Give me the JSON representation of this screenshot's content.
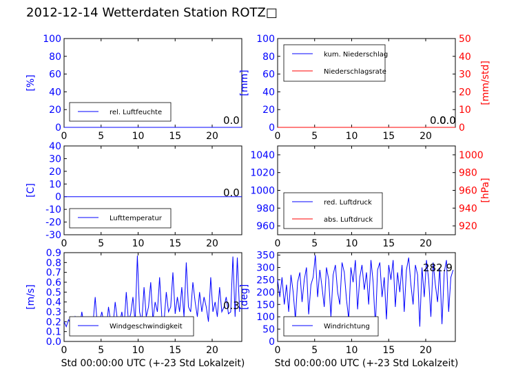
{
  "title": "2012-12-14 Wetterdaten Station ROTZ□",
  "colors": {
    "blue": "#0000ff",
    "red": "#ff0000"
  },
  "chart_data": [
    {
      "id": "humidity",
      "type": "line",
      "ylabel": "[%]",
      "xlim": [
        0,
        24
      ],
      "ylim": [
        0,
        100
      ],
      "xticks": [
        0,
        5,
        10,
        15,
        20
      ],
      "yticks": [
        0,
        20,
        40,
        60,
        80,
        100
      ],
      "series": [
        {
          "name": "rel. Luftfeuchte",
          "x": [
            0,
            24
          ],
          "y": [
            0,
            0
          ]
        }
      ],
      "annotation": "0.0"
    },
    {
      "id": "precipitation",
      "type": "line",
      "ylabel": "[mm]",
      "ylabel_right": "[mm/std]",
      "xlim": [
        0,
        24
      ],
      "ylim": [
        0,
        100
      ],
      "ylim_right": [
        0,
        50
      ],
      "xticks": [
        0,
        5,
        10,
        15,
        20
      ],
      "yticks": [
        0,
        20,
        40,
        60,
        80,
        100
      ],
      "yticks_right": [
        0,
        10,
        20,
        30,
        40,
        50
      ],
      "series": [
        {
          "name": "kum. Niederschlag",
          "x": [
            0,
            24
          ],
          "y": [
            0,
            0
          ]
        },
        {
          "name": "Niederschlagsrate",
          "x": [
            0,
            24
          ],
          "y": [
            0,
            0
          ]
        }
      ],
      "annotation": "0.0",
      "annotation2": "0.0"
    },
    {
      "id": "temperature",
      "type": "line",
      "ylabel": "[C]",
      "xlim": [
        0,
        24
      ],
      "ylim": [
        -30,
        40
      ],
      "xticks": [
        0,
        5,
        10,
        15,
        20
      ],
      "yticks": [
        -30,
        -20,
        -10,
        0,
        10,
        20,
        30,
        40
      ],
      "series": [
        {
          "name": "Lufttemperatur",
          "x": [
            0,
            24
          ],
          "y": [
            0,
            0
          ]
        }
      ],
      "annotation": "0.0"
    },
    {
      "id": "pressure",
      "type": "line",
      "ylabel_right": "[hPa]",
      "xlim": [
        0,
        24
      ],
      "ylim": [
        950,
        1050
      ],
      "ylim_right": [
        910,
        1010
      ],
      "xticks": [
        0,
        5,
        10,
        15,
        20
      ],
      "yticks": [
        960,
        980,
        1000,
        1020,
        1040
      ],
      "yticks_right": [
        920,
        940,
        960,
        980,
        1000
      ],
      "series": [
        {
          "name": "red. Luftdruck",
          "x": [],
          "y": []
        },
        {
          "name": "abs. Luftdruck",
          "x": [],
          "y": []
        }
      ]
    },
    {
      "id": "windspeed",
      "type": "line",
      "ylabel": "[m/s]",
      "xlabel": "Std 00:00:00 UTC (+-23 Std Lokalzeit)",
      "xlim": [
        0,
        24
      ],
      "ylim": [
        0,
        0.9
      ],
      "xticks": [
        0,
        5,
        10,
        15,
        20
      ],
      "yticks": [
        0.0,
        0.1,
        0.2,
        0.3,
        0.4,
        0.5,
        0.6,
        0.7,
        0.8,
        0.9
      ],
      "series": [
        {
          "name": "Windgeschwindigkeit",
          "x": [
            0.0,
            0.3,
            0.6,
            0.9,
            1.2,
            1.5,
            1.8,
            2.1,
            2.4,
            2.7,
            3.0,
            3.3,
            3.6,
            3.9,
            4.2,
            4.5,
            4.8,
            5.1,
            5.4,
            5.7,
            6.0,
            6.3,
            6.6,
            6.9,
            7.2,
            7.5,
            7.8,
            8.1,
            8.4,
            8.7,
            9.0,
            9.3,
            9.6,
            9.9,
            10.2,
            10.5,
            10.8,
            11.1,
            11.4,
            11.7,
            12.0,
            12.3,
            12.6,
            12.9,
            13.2,
            13.5,
            13.8,
            14.1,
            14.4,
            14.7,
            15.0,
            15.3,
            15.6,
            15.9,
            16.2,
            16.5,
            16.8,
            17.1,
            17.4,
            17.7,
            18.0,
            18.3,
            18.6,
            18.9,
            19.2,
            19.5,
            19.8,
            20.1,
            20.4,
            20.7,
            21.0,
            21.3,
            21.6,
            21.9,
            22.2,
            22.5,
            22.8,
            23.1,
            23.4,
            23.7
          ],
          "y": [
            0.2,
            0.15,
            0.22,
            0.18,
            0.12,
            0.25,
            0.19,
            0.14,
            0.3,
            0.16,
            0.2,
            0.13,
            0.24,
            0.17,
            0.45,
            0.15,
            0.2,
            0.3,
            0.18,
            0.12,
            0.35,
            0.2,
            0.15,
            0.4,
            0.22,
            0.18,
            0.3,
            0.15,
            0.5,
            0.2,
            0.28,
            0.45,
            0.18,
            0.87,
            0.3,
            0.2,
            0.55,
            0.25,
            0.35,
            0.6,
            0.22,
            0.4,
            0.3,
            0.65,
            0.25,
            0.2,
            0.5,
            0.3,
            0.35,
            0.7,
            0.28,
            0.45,
            0.3,
            0.55,
            0.25,
            0.8,
            0.35,
            0.3,
            0.6,
            0.4,
            0.25,
            0.5,
            0.3,
            0.45,
            0.35,
            0.2,
            0.65,
            0.3,
            0.4,
            0.25,
            0.55,
            0.3,
            0.35,
            0.45,
            0.28,
            0.3,
            0.86,
            0.25,
            0.85,
            0.3
          ]
        }
      ],
      "annotation": "0.3"
    },
    {
      "id": "winddirection",
      "type": "line",
      "ylabel": "[deg]",
      "xlabel": "Std 00:00:00 UTC (+-23 Std Lokalzeit)",
      "xlim": [
        0,
        24
      ],
      "ylim": [
        0,
        360
      ],
      "xticks": [
        0,
        5,
        10,
        15,
        20
      ],
      "yticks": [
        0,
        50,
        100,
        150,
        200,
        250,
        300,
        350
      ],
      "series": [
        {
          "name": "Windrichtung",
          "x": [
            0.0,
            0.3,
            0.6,
            0.9,
            1.2,
            1.5,
            1.8,
            2.1,
            2.4,
            2.7,
            3.0,
            3.3,
            3.6,
            3.9,
            4.2,
            4.5,
            4.8,
            5.1,
            5.4,
            5.7,
            6.0,
            6.3,
            6.6,
            6.9,
            7.2,
            7.5,
            7.8,
            8.1,
            8.4,
            8.7,
            9.0,
            9.3,
            9.6,
            9.9,
            10.2,
            10.5,
            10.8,
            11.1,
            11.4,
            11.7,
            12.0,
            12.3,
            12.6,
            12.9,
            13.2,
            13.5,
            13.8,
            14.1,
            14.4,
            14.7,
            15.0,
            15.3,
            15.6,
            15.9,
            16.2,
            16.5,
            16.8,
            17.1,
            17.4,
            17.7,
            18.0,
            18.3,
            18.6,
            18.9,
            19.2,
            19.5,
            19.8,
            20.1,
            20.4,
            20.7,
            21.0,
            21.3,
            21.6,
            21.9,
            22.2,
            22.5,
            22.8,
            23.1,
            23.4,
            23.7
          ],
          "y": [
            250,
            180,
            260,
            150,
            230,
            120,
            270,
            200,
            90,
            240,
            280,
            160,
            250,
            300,
            110,
            230,
            260,
            350,
            180,
            290,
            220,
            140,
            300,
            250,
            100,
            270,
            310,
            200,
            150,
            320,
            280,
            170,
            90,
            300,
            240,
            330,
            130,
            260,
            310,
            210,
            280,
            150,
            330,
            240,
            60,
            290,
            320,
            180,
            260,
            90,
            310,
            250,
            330,
            140,
            280,
            200,
            310,
            120,
            290,
            340,
            230,
            150,
            310,
            270,
            60,
            300,
            180,
            330,
            250,
            100,
            320,
            230,
            160,
            300,
            70,
            280,
            330,
            120,
            260,
            290
          ]
        }
      ],
      "annotation": "282.9"
    }
  ]
}
